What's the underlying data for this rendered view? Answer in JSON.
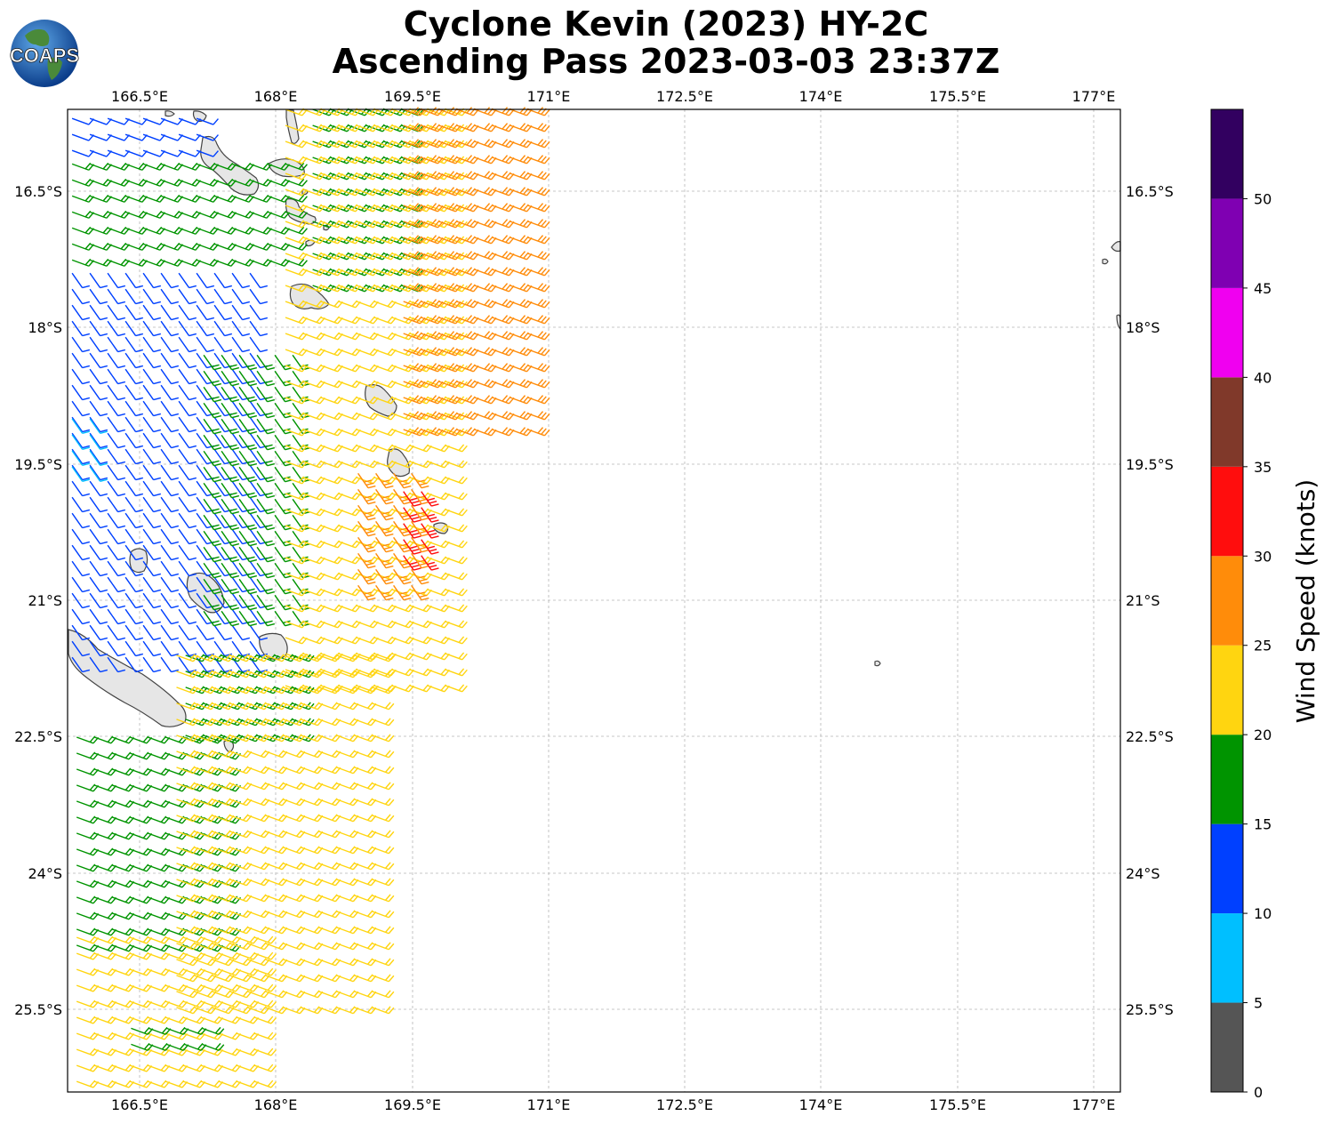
{
  "title": {
    "line1": "Cyclone Kevin (2023) HY-2C",
    "line2": "Ascending Pass 2023-03-03 23:37Z"
  },
  "logo": {
    "text": "COAPS"
  },
  "map": {
    "lon_ticks": [
      "166.5°E",
      "168°E",
      "169.5°E",
      "171°E",
      "172.5°E",
      "174°E",
      "175.5°E",
      "177°E"
    ],
    "lat_ticks": [
      "16.5°S",
      "18°S",
      "19.5°S",
      "21°S",
      "22.5°S",
      "24°S",
      "25.5°S"
    ],
    "lon_range": [
      165.7,
      177.3
    ],
    "lat_range": [
      -15.6,
      -26.4
    ]
  },
  "colorbar": {
    "label": "Wind Speed (knots)",
    "ticks": [
      "0",
      "5",
      "10",
      "15",
      "20",
      "25",
      "30",
      "35",
      "40",
      "45",
      "50"
    ],
    "bins": [
      {
        "from": 0,
        "to": 5,
        "color": "#555555"
      },
      {
        "from": 5,
        "to": 10,
        "color": "#00bfff"
      },
      {
        "from": 10,
        "to": 15,
        "color": "#0040ff"
      },
      {
        "from": 15,
        "to": 20,
        "color": "#009400"
      },
      {
        "from": 20,
        "to": 25,
        "color": "#ffd510"
      },
      {
        "from": 25,
        "to": 30,
        "color": "#ff8c0a"
      },
      {
        "from": 30,
        "to": 35,
        "color": "#ff0d0d"
      },
      {
        "from": 35,
        "to": 40,
        "color": "#80392a"
      },
      {
        "from": 40,
        "to": 45,
        "color": "#f000f0"
      },
      {
        "from": 45,
        "to": 50,
        "color": "#7f00b2"
      },
      {
        "from": 50,
        "to": 55,
        "color": "#320060"
      }
    ]
  },
  "wind_regions": [
    {
      "name": "north-blue-band",
      "speed": 12,
      "lon": [
        165.75,
        167.3
      ],
      "lat": [
        -15.7,
        -16.2
      ]
    },
    {
      "name": "north-green-band",
      "speed": 17,
      "lon": [
        165.75,
        168.2
      ],
      "lat": [
        -16.2,
        -17.4
      ]
    },
    {
      "name": "central-blue-band",
      "speed": 13,
      "lon": [
        165.75,
        167.9
      ],
      "lat": [
        -17.4,
        -21.7
      ]
    },
    {
      "name": "west-cyan-strip",
      "speed": 7,
      "lon": [
        165.75,
        166.0
      ],
      "lat": [
        -19.0,
        -19.7
      ]
    },
    {
      "name": "central-green-band",
      "speed": 18,
      "lon": [
        167.2,
        168.3
      ],
      "lat": [
        -18.3,
        -21.2
      ]
    },
    {
      "name": "northeast-green-band",
      "speed": 18,
      "lon": [
        168.4,
        169.4
      ],
      "lat": [
        -15.6,
        -17.6
      ]
    },
    {
      "name": "central-yellow-band",
      "speed": 22,
      "lon": [
        168.1,
        170.0
      ],
      "lat": [
        -15.6,
        -22.0
      ]
    },
    {
      "name": "east-orange-band",
      "speed": 27,
      "lon": [
        169.4,
        170.9
      ],
      "lat": [
        -15.6,
        -19.2
      ]
    },
    {
      "name": "southeast-orange-band",
      "speed": 27,
      "lon": [
        168.9,
        169.5
      ],
      "lat": [
        -19.6,
        -21.0
      ]
    },
    {
      "name": "core-red-band",
      "speed": 32,
      "lon": [
        169.4,
        169.7
      ],
      "lat": [
        -19.8,
        -20.6
      ]
    },
    {
      "name": "middle-green-band",
      "speed": 17,
      "lon": [
        167.0,
        168.3
      ],
      "lat": [
        -21.6,
        -22.6
      ]
    },
    {
      "name": "south-green-band",
      "speed": 18,
      "lon": [
        165.8,
        167.5
      ],
      "lat": [
        -22.5,
        -24.8
      ]
    },
    {
      "name": "south-yellow-band",
      "speed": 22,
      "lon": [
        166.9,
        169.2
      ],
      "lat": [
        -21.6,
        -25.5
      ]
    },
    {
      "name": "southwest-yellow-band",
      "speed": 22,
      "lon": [
        165.8,
        167.8
      ],
      "lat": [
        -24.7,
        -26.4
      ]
    },
    {
      "name": "southwest-green-band",
      "speed": 18,
      "lon": [
        166.4,
        167.3
      ],
      "lat": [
        -25.7,
        -26.0
      ]
    }
  ]
}
